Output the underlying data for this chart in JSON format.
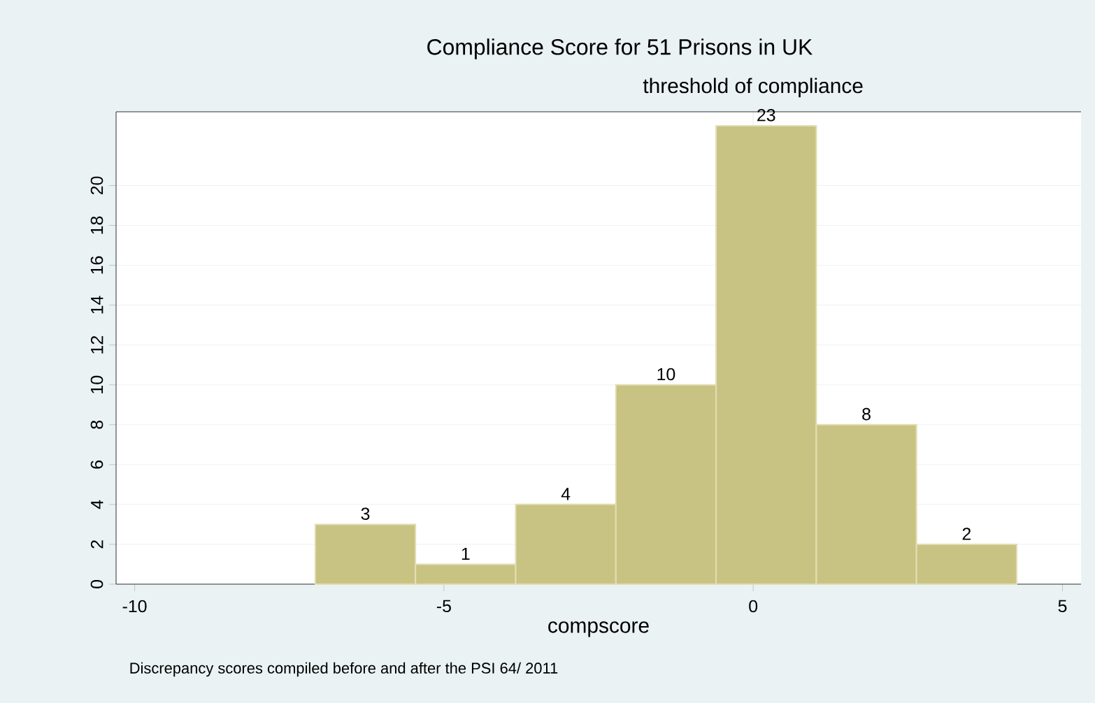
{
  "chart_data": {
    "type": "histogram",
    "title": "Compliance Score for 51 Prisons in UK",
    "xlabel": "compscore",
    "annotations": [
      "Discrepancy scores compiled before and after the PSI 64/ 2011"
    ],
    "bins": [
      -7.08,
      -5.46,
      -3.84,
      -2.22,
      -0.6,
      1.02,
      2.64,
      4.26
    ],
    "values": [
      3,
      1,
      4,
      10,
      23,
      8,
      2
    ],
    "color": "#c9c383",
    "data_labels": true,
    "xlim": [
      -10.3,
      5.3
    ],
    "ylim": [
      0,
      23.7
    ],
    "xticks": [
      -10,
      -5,
      0,
      5
    ],
    "yticks": [
      0,
      2,
      4,
      6,
      8,
      10,
      12,
      14,
      16,
      18,
      20
    ],
    "grid": "y",
    "ref_lines": [
      {
        "axis": "x",
        "value": 0,
        "label": "threshold of compliance",
        "color": "#d8e3e6"
      }
    ]
  }
}
